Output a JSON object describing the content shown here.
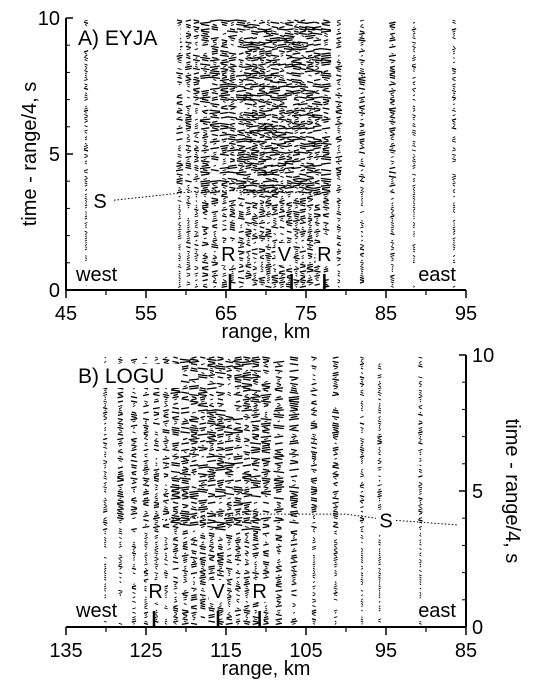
{
  "chart_data": [
    {
      "type": "seismic-record-section",
      "panel_label": "A) EYJA",
      "xlabel": "range, km",
      "ylabel": "time - range/4, s",
      "xlim": [
        45,
        95
      ],
      "ylim": [
        0,
        10
      ],
      "x_direction": "ascending",
      "yaxis_side": "left",
      "xticks": [
        45,
        55,
        65,
        75,
        85,
        95
      ],
      "yticks": [
        0,
        5,
        10
      ],
      "traces_km": [
        47.5,
        59.2,
        60.3,
        61.3,
        62.4,
        63.6,
        64.8,
        65.8,
        66.9,
        67.8,
        68.6,
        69.5,
        70.3,
        71.1,
        72.0,
        72.9,
        73.8,
        74.6,
        75.5,
        76.4,
        77.5,
        79.1,
        82.0,
        85.8,
        88.5,
        93.5
      ],
      "phase_labels": [
        {
          "label": "R",
          "x": 65.3,
          "t": 0.55
        },
        {
          "label": "V",
          "x": 72.3,
          "t": 0.55
        },
        {
          "label": "R",
          "x": 77.3,
          "t": 0.55
        }
      ],
      "side_labels": {
        "left": "west",
        "right": "east"
      },
      "s_phase": {
        "label": "S",
        "points": [
          [
            51,
            3.3
          ],
          [
            62,
            3.65
          ],
          [
            70,
            3.65
          ],
          [
            77,
            3.55
          ]
        ]
      },
      "marker_ticks_km": [
        65.5,
        73.2,
        77.3
      ]
    },
    {
      "type": "seismic-record-section",
      "panel_label": "B) LOGU",
      "xlabel": "range, km",
      "ylabel": "time - range/4, s",
      "xlim": [
        135,
        85
      ],
      "ylim": [
        0,
        10
      ],
      "x_direction": "descending",
      "yaxis_side": "right",
      "xticks": [
        135,
        125,
        115,
        105,
        95,
        85
      ],
      "yticks": [
        0,
        5,
        10
      ],
      "traces_km": [
        130.1,
        128.2,
        126.5,
        125.0,
        123.7,
        122.5,
        121.3,
        120.1,
        119.0,
        117.9,
        116.8,
        115.7,
        114.6,
        113.5,
        112.4,
        111.3,
        110.0,
        108.4,
        106.5,
        104.0,
        101.3,
        98.0,
        95.8,
        90.7
      ],
      "phase_labels": [
        {
          "label": "R",
          "x": 123.8,
          "t": 0.55
        },
        {
          "label": "V",
          "x": 116.0,
          "t": 0.55
        },
        {
          "label": "R",
          "x": 110.8,
          "t": 0.55
        }
      ],
      "side_labels": {
        "left": "west",
        "right": "east"
      },
      "s_phase": {
        "label": "S",
        "points": [
          [
            123,
            3.95
          ],
          [
            112,
            4.15
          ],
          [
            100,
            4.15
          ],
          [
            95,
            3.95
          ],
          [
            86,
            3.75
          ]
        ]
      },
      "marker_ticks_km": [
        124.0,
        116.0,
        110.8
      ]
    }
  ]
}
